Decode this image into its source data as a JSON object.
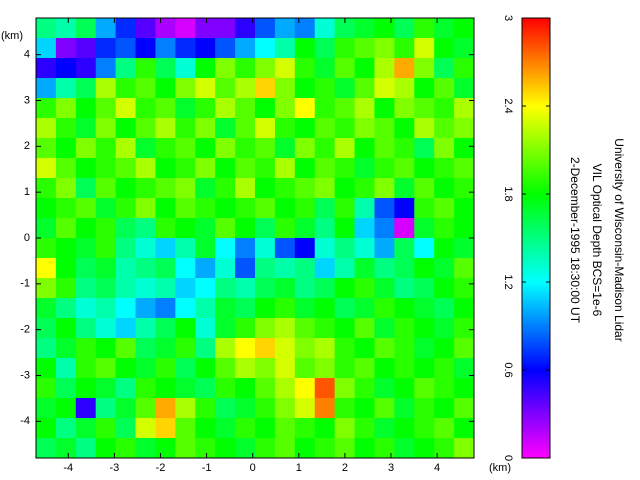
{
  "chart_data": {
    "type": "heatmap",
    "title_lines": [
      "University of Wisconsin-Madison Lidar",
      "VIL Optical Depth BCS=1e-6",
      "2-December-1995 18:30:00 UT"
    ],
    "xlabel": "(km)",
    "ylabel": "(km)",
    "xlim": [
      -4.7,
      4.8
    ],
    "ylim": [
      -4.8,
      4.8
    ],
    "xticks": [
      -4,
      -3,
      -2,
      -1,
      0,
      1,
      2,
      3,
      4
    ],
    "yticks": [
      -4,
      -3,
      -2,
      -1,
      0,
      1,
      2,
      3,
      4
    ],
    "clim": [
      0,
      3
    ],
    "cticks": [
      0,
      0.6,
      1.2,
      1.8,
      2.4,
      3
    ],
    "colormap": [
      "#ff00ff",
      "#0000ff",
      "#00ffff",
      "#00ff00",
      "#ffff00",
      "#ff0000"
    ],
    "z": [
      [
        1.5,
        1.4,
        1.6,
        1.0,
        0.7,
        0.4,
        0.2,
        0.1,
        0.3,
        0.3,
        0.5,
        0.8,
        1.0,
        0.9,
        1.3,
        1.6,
        1.7,
        1.8,
        1.6,
        1.9,
        1.7,
        1.8
      ],
      [
        1.1,
        0.3,
        0.4,
        0.7,
        0.8,
        0.6,
        0.9,
        0.7,
        0.6,
        0.8,
        1.0,
        1.2,
        1.4,
        1.8,
        1.6,
        1.9,
        2.0,
        2.1,
        1.9,
        2.3,
        1.8,
        1.7
      ],
      [
        0.5,
        0.6,
        0.5,
        0.9,
        1.5,
        1.9,
        1.6,
        1.3,
        1.8,
        2.1,
        1.9,
        2.1,
        2.3,
        1.9,
        1.7,
        2.0,
        1.8,
        2.2,
        2.6,
        2.1,
        1.6,
        1.9
      ],
      [
        1.0,
        1.4,
        1.6,
        2.2,
        1.9,
        2.0,
        1.8,
        2.1,
        2.3,
        2.0,
        2.2,
        2.5,
        2.1,
        1.8,
        1.9,
        1.7,
        2.0,
        2.3,
        2.2,
        1.8,
        2.0,
        1.7
      ],
      [
        1.9,
        2.1,
        1.8,
        2.0,
        2.3,
        1.9,
        2.0,
        1.7,
        1.9,
        2.2,
        2.0,
        1.8,
        2.1,
        2.4,
        1.9,
        2.0,
        2.2,
        1.8,
        2.1,
        2.0,
        1.9,
        2.2
      ],
      [
        2.2,
        1.9,
        1.7,
        2.1,
        1.8,
        2.0,
        2.2,
        1.9,
        2.1,
        1.7,
        2.0,
        2.3,
        1.9,
        1.8,
        2.0,
        1.9,
        2.1,
        2.0,
        1.8,
        2.2,
        2.0,
        2.1
      ],
      [
        2.0,
        1.8,
        2.1,
        1.9,
        2.2,
        1.7,
        1.9,
        2.0,
        1.8,
        2.1,
        1.9,
        2.0,
        1.7,
        2.1,
        1.9,
        2.2,
        1.8,
        2.0,
        1.9,
        1.6,
        2.1,
        1.8
      ],
      [
        2.3,
        2.0,
        1.8,
        1.9,
        2.0,
        2.2,
        1.8,
        1.9,
        2.1,
        1.8,
        2.0,
        1.9,
        2.2,
        1.8,
        2.0,
        1.9,
        1.7,
        1.9,
        2.0,
        1.8,
        1.9,
        2.0
      ],
      [
        1.9,
        2.1,
        1.6,
        2.0,
        1.8,
        1.9,
        2.0,
        2.1,
        1.7,
        1.9,
        2.2,
        1.8,
        1.9,
        2.0,
        2.1,
        1.8,
        1.9,
        2.1,
        1.7,
        2.0,
        1.8,
        1.9
      ],
      [
        1.8,
        1.9,
        2.0,
        1.7,
        1.9,
        2.1,
        1.8,
        2.0,
        1.9,
        1.8,
        1.9,
        2.0,
        1.8,
        1.9,
        1.6,
        1.9,
        1.4,
        0.8,
        0.6,
        1.9,
        2.0,
        1.8
      ],
      [
        1.7,
        2.0,
        1.8,
        1.9,
        1.6,
        1.5,
        1.9,
        1.8,
        1.7,
        2.0,
        1.8,
        1.6,
        1.9,
        1.7,
        1.5,
        1.8,
        1.1,
        0.9,
        0.1,
        1.7,
        1.9,
        1.8
      ],
      [
        1.9,
        1.8,
        1.7,
        1.9,
        1.5,
        1.3,
        1.1,
        1.4,
        1.7,
        1.2,
        0.9,
        1.3,
        0.8,
        0.6,
        1.3,
        1.5,
        1.3,
        1.0,
        1.6,
        1.2,
        1.8,
        1.7
      ],
      [
        2.4,
        1.8,
        1.6,
        1.7,
        1.4,
        1.5,
        1.6,
        1.2,
        1.0,
        1.3,
        0.8,
        1.5,
        1.4,
        1.5,
        1.1,
        1.4,
        1.7,
        1.5,
        1.6,
        1.8,
        1.7,
        2.0
      ],
      [
        2.1,
        1.9,
        1.5,
        1.6,
        1.4,
        1.3,
        1.4,
        1.1,
        1.2,
        1.5,
        1.4,
        1.6,
        1.7,
        1.5,
        1.6,
        1.8,
        1.9,
        1.7,
        1.5,
        1.6,
        1.8,
        1.9
      ],
      [
        1.7,
        1.5,
        1.3,
        1.4,
        1.2,
        1.0,
        0.9,
        1.2,
        1.4,
        1.7,
        1.6,
        1.8,
        1.9,
        1.7,
        1.8,
        1.6,
        1.7,
        1.9,
        1.8,
        1.7,
        1.6,
        1.8
      ],
      [
        1.6,
        1.8,
        1.5,
        1.3,
        1.1,
        1.4,
        1.6,
        1.8,
        1.3,
        1.7,
        1.9,
        2.1,
        2.2,
        2.0,
        1.9,
        1.8,
        2.0,
        1.7,
        1.9,
        1.8,
        1.7,
        1.9
      ],
      [
        1.5,
        1.7,
        1.9,
        1.8,
        2.0,
        1.6,
        1.7,
        1.9,
        1.5,
        2.2,
        2.4,
        2.5,
        2.3,
        2.1,
        2.2,
        1.9,
        1.8,
        2.0,
        1.9,
        1.7,
        1.8,
        2.0
      ],
      [
        1.8,
        1.4,
        1.9,
        2.0,
        1.8,
        1.7,
        1.9,
        1.6,
        1.8,
        2.0,
        2.2,
        2.1,
        2.3,
        2.0,
        2.1,
        1.9,
        2.0,
        1.8,
        1.9,
        1.8,
        1.9,
        1.7
      ],
      [
        1.9,
        1.6,
        1.8,
        1.7,
        1.5,
        1.9,
        1.8,
        1.7,
        1.6,
        1.9,
        1.8,
        2.0,
        2.2,
        2.4,
        2.8,
        2.1,
        1.9,
        1.7,
        1.8,
        2.0,
        1.9,
        1.8
      ],
      [
        1.7,
        1.8,
        0.5,
        1.5,
        1.7,
        2.0,
        2.6,
        2.2,
        1.9,
        1.6,
        1.7,
        1.9,
        2.1,
        2.3,
        2.7,
        1.9,
        1.8,
        2.0,
        1.7,
        1.9,
        1.8,
        2.0
      ],
      [
        1.8,
        1.5,
        1.7,
        1.9,
        1.6,
        2.3,
        2.5,
        2.0,
        1.8,
        1.7,
        1.9,
        1.8,
        2.0,
        1.9,
        1.8,
        2.1,
        1.9,
        1.7,
        1.8,
        1.9,
        2.0,
        1.8
      ],
      [
        1.6,
        1.7,
        1.5,
        1.8,
        1.9,
        1.7,
        1.8,
        2.0,
        1.9,
        1.8,
        1.7,
        1.9,
        2.0,
        1.8,
        1.9,
        2.0,
        1.8,
        1.9,
        1.7,
        1.8,
        1.9,
        2.1
      ]
    ]
  }
}
